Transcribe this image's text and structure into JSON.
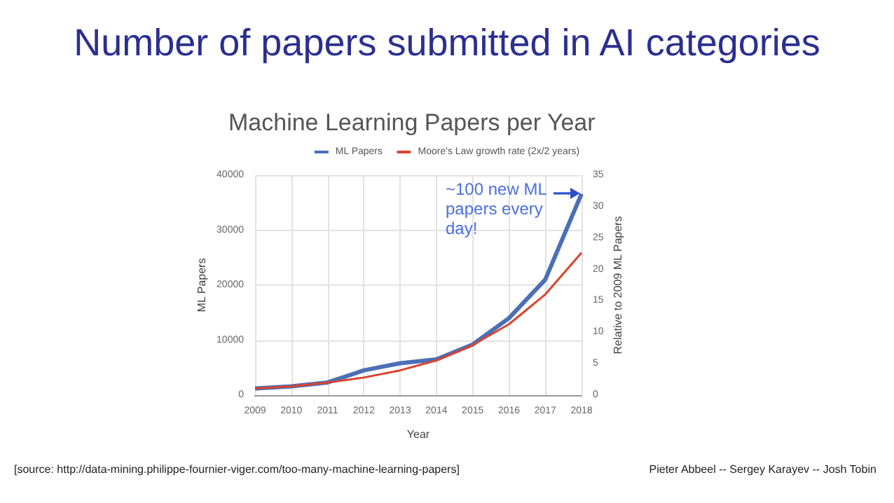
{
  "chart_data": {
    "type": "line",
    "title": "Number of papers submitted in AI categories",
    "subtitle": "Machine Learning Papers per Year",
    "xlabel": "Year",
    "ylabel": "ML Papers",
    "y2label": "Relative to 2009 ML Papers",
    "x": [
      2009,
      2010,
      2011,
      2012,
      2013,
      2014,
      2015,
      2016,
      2017,
      2018
    ],
    "series": [
      {
        "name": "ML Papers",
        "color": "#4a6fb5",
        "values": [
          1200,
          1600,
          2300,
          4500,
          5800,
          6500,
          9200,
          14000,
          21000,
          36600
        ]
      },
      {
        "name": "Moore's Law growth rate (2x/2 years)",
        "color": "#d9442e",
        "values": [
          1200,
          1600,
          2300,
          3200,
          4500,
          6300,
          9100,
          12900,
          18300,
          25900
        ]
      }
    ],
    "xlim": [
      2009,
      2018
    ],
    "xticks": [
      2009,
      2010,
      2011,
      2012,
      2013,
      2014,
      2015,
      2016,
      2017,
      2018
    ],
    "ylim": [
      0,
      40000
    ],
    "yticks": [
      0,
      10000,
      20000,
      30000,
      40000
    ],
    "y2lim": [
      0,
      35
    ],
    "y2ticks": [
      0,
      5,
      10,
      15,
      20,
      25,
      30,
      35
    ],
    "grid": true,
    "legend": "top",
    "marker": "none",
    "line_style": "solid",
    "annotations": [
      "~100 new ML papers every day!",
      "[source: http://data-mining.philippe-fournier-viger.com/too-many-machine-learning-papers]",
      "Pieter Abbeel -- Sergey Karayev -- Josh Tobin"
    ]
  }
}
